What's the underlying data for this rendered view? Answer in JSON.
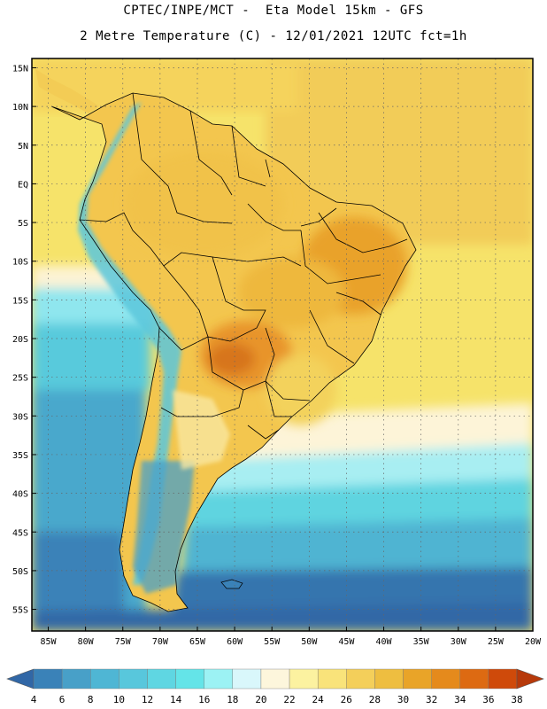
{
  "header": {
    "line1": "CPTEC/INPE/MCT -  Eta Model 15km - GFS",
    "line2": "2 Metre Temperature (C) - 12/01/2021 12UTC fct=1h"
  },
  "map": {
    "lat_labels": [
      "15N",
      "10N",
      "5N",
      "EQ",
      "5S",
      "10S",
      "15S",
      "20S",
      "25S",
      "30S",
      "35S",
      "40S",
      "45S",
      "50S",
      "55S"
    ],
    "lon_labels": [
      "85W",
      "80W",
      "75W",
      "70W",
      "65W",
      "60W",
      "55W",
      "50W",
      "45W",
      "40W",
      "35W",
      "30W",
      "25W",
      "20W"
    ],
    "ocean_base_color": "#f4e066",
    "land_color": "#f2c24a",
    "hot_color": "#e89a2c",
    "hottest_color": "#d4741e"
  },
  "colorbar": {
    "labels": [
      "4",
      "6",
      "8",
      "10",
      "12",
      "14",
      "16",
      "18",
      "20",
      "22",
      "24",
      "26",
      "28",
      "30",
      "32",
      "34",
      "36",
      "38"
    ],
    "colors": [
      "#3167a6",
      "#3a82b8",
      "#48a0c8",
      "#4fb6d4",
      "#58c7dc",
      "#5fd6e2",
      "#64e4e8",
      "#9cf2f4",
      "#d9f7fb",
      "#fdf6dc",
      "#fcf2a0",
      "#f9e37a",
      "#f4cf5a",
      "#eebe40",
      "#e9a428",
      "#e58a1c",
      "#dd6a12",
      "#cf4a0a",
      "#b7390a"
    ]
  }
}
